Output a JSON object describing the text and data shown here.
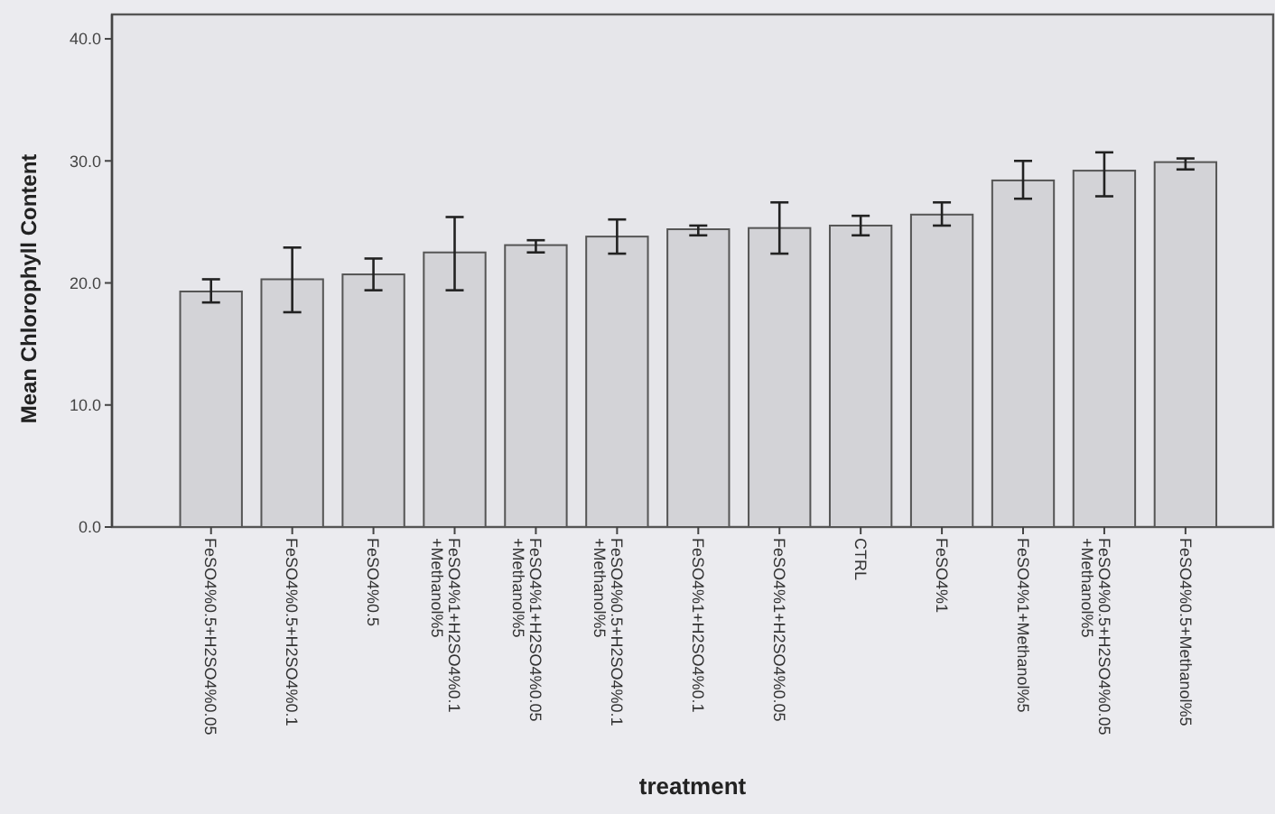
{
  "chart_data": {
    "type": "bar",
    "xlabel": "treatment",
    "ylabel": "Mean Chlorophyll Content",
    "categories": [
      "FeSO4%0.5+H2SO4%0.05",
      "FeSO4%0.5+H2SO4%0.1",
      "FeSO4%0.5",
      "FeSO4%1+H2SO4%0.1\n+Methanol%5",
      "FeSO4%1+H2SO4%0.05\n+Methanol%5",
      "FeSO4%0.5+H2SO4%0.1\n+Methanol%5",
      "FeSO4%1+H2SO4%0.1",
      "FeSO4%1+H2SO4%0.05",
      "CTRL",
      "FeSO4%1",
      "FeSO4%1+Methanol%5",
      "FeSO4%0.5+H2SO4%0.05\n+Methanol%5",
      "FeSO4%0.5+Methanol%5"
    ],
    "values": [
      19.3,
      20.3,
      20.7,
      22.5,
      23.1,
      23.8,
      24.4,
      24.5,
      24.7,
      25.6,
      28.4,
      29.2,
      29.9
    ],
    "errors": [
      [
        18.4,
        20.3
      ],
      [
        17.6,
        22.9
      ],
      [
        19.4,
        22.0
      ],
      [
        19.4,
        25.4
      ],
      [
        22.5,
        23.5
      ],
      [
        22.4,
        25.2
      ],
      [
        23.9,
        24.7
      ],
      [
        22.4,
        26.6
      ],
      [
        23.9,
        25.5
      ],
      [
        24.7,
        26.6
      ],
      [
        26.9,
        30.0
      ],
      [
        27.1,
        30.7
      ],
      [
        29.3,
        30.2
      ]
    ],
    "color": "#d3d3d7",
    "ylim": [
      0,
      42
    ],
    "yticks": [
      {
        "value": 0,
        "label": "0.0"
      },
      {
        "value": 10,
        "label": "10.0"
      },
      {
        "value": 20,
        "label": "20.0"
      },
      {
        "value": 30,
        "label": "30.0"
      },
      {
        "value": 40,
        "label": "40.0"
      }
    ]
  }
}
